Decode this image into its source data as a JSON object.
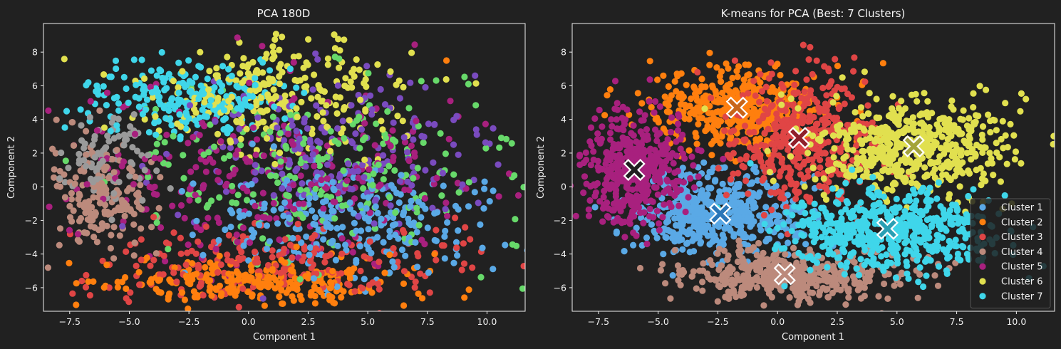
{
  "colors": {
    "background": "#212121",
    "axes_edge": "#f0f0f0",
    "text": "#f0f0f0",
    "legend_background": "#212121",
    "legend_edge": "#555555"
  },
  "chart_data": [
    {
      "type": "scatter",
      "title": "PCA 180D",
      "xlabel": "Component 1",
      "ylabel": "Component 2",
      "xlim": [
        -8.6,
        11.6
      ],
      "ylim": [
        -7.4,
        9.7
      ],
      "xticks": [
        "−7.5",
        "−5.0",
        "−2.5",
        "0.0",
        "2.5",
        "5.0",
        "7.5",
        "10.0"
      ],
      "xtick_values": [
        -7.5,
        -5.0,
        -2.5,
        0.0,
        2.5,
        5.0,
        7.5,
        10.0
      ],
      "yticks": [
        "−6",
        "−4",
        "−2",
        "0",
        "2",
        "4",
        "6",
        "8"
      ],
      "ytick_values": [
        -6,
        -4,
        -2,
        0,
        2,
        4,
        6,
        8
      ],
      "grid": false,
      "legend": null,
      "groups": [
        {
          "color": "#5aa9e6",
          "center": [
            4.2,
            -2.2
          ],
          "spread": [
            2.8,
            1.6
          ],
          "count": 260
        },
        {
          "color": "#ff7f0e",
          "center": [
            0.6,
            -5.6
          ],
          "spread": [
            3.4,
            0.7
          ],
          "count": 260
        },
        {
          "color": "#e04545",
          "center": [
            1.2,
            -4.6
          ],
          "spread": [
            4.2,
            1.1
          ],
          "count": 220
        },
        {
          "color": "#bc8a7c",
          "center": [
            -6.2,
            -0.5
          ],
          "spread": [
            1.0,
            1.7
          ],
          "count": 170
        },
        {
          "color": "#a8207e",
          "center": [
            1.0,
            0.6
          ],
          "spread": [
            4.2,
            2.6
          ],
          "count": 280
        },
        {
          "color": "#e1e04f",
          "center": [
            1.2,
            5.4
          ],
          "spread": [
            2.8,
            1.6
          ],
          "count": 260
        },
        {
          "color": "#3fd6ea",
          "center": [
            -2.6,
            5.2
          ],
          "spread": [
            2.0,
            1.2
          ],
          "count": 220
        },
        {
          "color": "#7a4bbf",
          "center": [
            3.5,
            2.0
          ],
          "spread": [
            3.0,
            2.5
          ],
          "count": 220
        },
        {
          "color": "#67d96a",
          "center": [
            3.2,
            0.8
          ],
          "spread": [
            4.0,
            2.8
          ],
          "count": 240
        },
        {
          "color": "#9a9a9a",
          "center": [
            -5.8,
            1.8
          ],
          "spread": [
            0.9,
            1.3
          ],
          "count": 90
        }
      ],
      "outliers": [
        {
          "x": 10.6,
          "y": 2.9,
          "color": "#67d96a"
        },
        {
          "x": 8.3,
          "y": 7.5,
          "color": "#ff7f0e"
        },
        {
          "x": 9.5,
          "y": 6.6,
          "color": "#7a4bbf"
        },
        {
          "x": 1.4,
          "y": 8.9,
          "color": "#e1e04f"
        },
        {
          "x": -7.9,
          "y": 0.0,
          "color": "#bc8a7c"
        },
        {
          "x": 9.9,
          "y": 0.3,
          "color": "#5aa9e6"
        }
      ]
    },
    {
      "type": "scatter",
      "title": "K-means for PCA (Best: 7 Clusters)",
      "xlabel": "Component 1",
      "ylabel": "Component 2",
      "xlim": [
        -8.6,
        11.6
      ],
      "ylim": [
        -7.4,
        9.7
      ],
      "xticks": [
        "−7.5",
        "−5.0",
        "−2.5",
        "0.0",
        "2.5",
        "5.0",
        "7.5",
        "10.0"
      ],
      "xtick_values": [
        -7.5,
        -5.0,
        -2.5,
        0.0,
        2.5,
        5.0,
        7.5,
        10.0
      ],
      "yticks": [
        "−6",
        "−4",
        "−2",
        "0",
        "2",
        "4",
        "6",
        "8"
      ],
      "ytick_values": [
        -6,
        -4,
        -2,
        0,
        2,
        4,
        6,
        8
      ],
      "grid": false,
      "legend": "lower right",
      "clusters": [
        {
          "name": "Cluster 1",
          "color": "#5aa9e6",
          "centroid_color": "#2a76b8",
          "centroid": [
            -2.4,
            -1.6
          ],
          "spread": [
            1.9,
            1.2
          ],
          "count": 480
        },
        {
          "name": "Cluster 2",
          "color": "#ff7f0e",
          "centroid_color": "#c8651a",
          "centroid": [
            -1.7,
            4.7
          ],
          "spread": [
            1.9,
            1.3
          ],
          "count": 420
        },
        {
          "name": "Cluster 3",
          "color": "#e04545",
          "centroid_color": "#8f1f2a",
          "centroid": [
            0.9,
            2.9
          ],
          "spread": [
            1.5,
            1.9
          ],
          "count": 440
        },
        {
          "name": "Cluster 4",
          "color": "#bc8a7c",
          "centroid_color": "#bc8a7c",
          "centroid": [
            0.3,
            -5.2
          ],
          "spread": [
            2.4,
            0.75
          ],
          "count": 420
        },
        {
          "name": "Cluster 5",
          "color": "#a8207e",
          "centroid_color": "#202020",
          "centroid": [
            -6.0,
            1.0
          ],
          "spread": [
            1.1,
            1.7
          ],
          "count": 440
        },
        {
          "name": "Cluster 6",
          "color": "#e1e04f",
          "centroid_color": "#a4a43a",
          "centroid": [
            5.7,
            2.4
          ],
          "spread": [
            2.3,
            1.4
          ],
          "count": 540
        },
        {
          "name": "Cluster 7",
          "color": "#3fd6ea",
          "centroid_color": "#2a9fb3",
          "centroid": [
            4.6,
            -2.5
          ],
          "spread": [
            2.2,
            1.2
          ],
          "count": 540
        }
      ]
    }
  ]
}
